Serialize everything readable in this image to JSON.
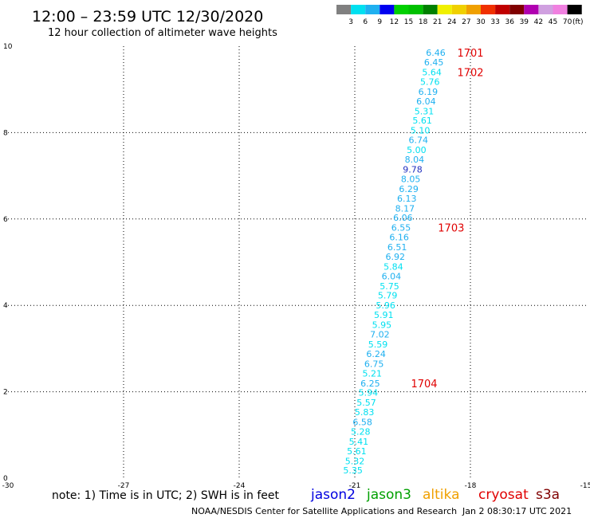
{
  "chart_data": {
    "type": "scatter",
    "title": "12:00 – 23:59 UTC 12/30/2020",
    "subtitle": "12 hour collection of altimeter wave heights",
    "xlim": [
      -30,
      -15
    ],
    "ylim": [
      0,
      10
    ],
    "x_ticks": [
      "-30",
      "-27",
      "-24",
      "-21",
      "-18",
      "-15"
    ],
    "y_ticks": [
      "0",
      "2",
      "4",
      "6",
      "8",
      "10"
    ],
    "grid": "dotted",
    "points": [
      {
        "x": -18.9,
        "y": 9.85,
        "label": "6.46",
        "color": "#1fb0f0"
      },
      {
        "x": -18.95,
        "y": 9.63,
        "label": "6.45",
        "color": "#1fb0f0"
      },
      {
        "x": -19.0,
        "y": 9.4,
        "label": "5.64",
        "color": "#00e0f0"
      },
      {
        "x": -19.05,
        "y": 9.18,
        "label": "5.76",
        "color": "#00e0f0"
      },
      {
        "x": -19.1,
        "y": 8.95,
        "label": "6.19",
        "color": "#1fb0f0"
      },
      {
        "x": -19.15,
        "y": 8.73,
        "label": "6.04",
        "color": "#1fb0f0"
      },
      {
        "x": -19.2,
        "y": 8.5,
        "label": "5.31",
        "color": "#00e0f0"
      },
      {
        "x": -19.25,
        "y": 8.28,
        "label": "5.61",
        "color": "#00e0f0"
      },
      {
        "x": -19.3,
        "y": 8.05,
        "label": "5.10",
        "color": "#00e0f0"
      },
      {
        "x": -19.35,
        "y": 7.83,
        "label": "6.74",
        "color": "#1fb0f0"
      },
      {
        "x": -19.4,
        "y": 7.6,
        "label": "5.00",
        "color": "#00e0f0"
      },
      {
        "x": -19.45,
        "y": 7.38,
        "label": "8.04",
        "color": "#1fb0f0"
      },
      {
        "x": -19.5,
        "y": 7.15,
        "label": "9.78",
        "color": "#2030c0"
      },
      {
        "x": -19.55,
        "y": 6.93,
        "label": "8.05",
        "color": "#1fb0f0"
      },
      {
        "x": -19.6,
        "y": 6.7,
        "label": "6.29",
        "color": "#1fb0f0"
      },
      {
        "x": -19.65,
        "y": 6.48,
        "label": "6.13",
        "color": "#1fb0f0"
      },
      {
        "x": -19.7,
        "y": 6.25,
        "label": "8.17",
        "color": "#1fb0f0"
      },
      {
        "x": -19.75,
        "y": 6.03,
        "label": "6.06",
        "color": "#1fb0f0"
      },
      {
        "x": -19.8,
        "y": 5.8,
        "label": "6.55",
        "color": "#1fb0f0"
      },
      {
        "x": -19.85,
        "y": 5.58,
        "label": "6.16",
        "color": "#1fb0f0"
      },
      {
        "x": -19.9,
        "y": 5.35,
        "label": "6.51",
        "color": "#1fb0f0"
      },
      {
        "x": -19.95,
        "y": 5.13,
        "label": "6.92",
        "color": "#1fb0f0"
      },
      {
        "x": -20.0,
        "y": 4.9,
        "label": "5.84",
        "color": "#00e0f0"
      },
      {
        "x": -20.05,
        "y": 4.68,
        "label": "6.04",
        "color": "#1fb0f0"
      },
      {
        "x": -20.1,
        "y": 4.45,
        "label": "5.75",
        "color": "#00e0f0"
      },
      {
        "x": -20.15,
        "y": 4.23,
        "label": "5.79",
        "color": "#00e0f0"
      },
      {
        "x": -20.2,
        "y": 4.0,
        "label": "5.96",
        "color": "#00e0f0"
      },
      {
        "x": -20.25,
        "y": 3.78,
        "label": "5.91",
        "color": "#00e0f0"
      },
      {
        "x": -20.3,
        "y": 3.55,
        "label": "5.95",
        "color": "#00e0f0"
      },
      {
        "x": -20.35,
        "y": 3.33,
        "label": "7.02",
        "color": "#1fb0f0"
      },
      {
        "x": -20.4,
        "y": 3.1,
        "label": "5.59",
        "color": "#00e0f0"
      },
      {
        "x": -20.45,
        "y": 2.88,
        "label": "6.24",
        "color": "#1fb0f0"
      },
      {
        "x": -20.5,
        "y": 2.65,
        "label": "6.75",
        "color": "#1fb0f0"
      },
      {
        "x": -20.55,
        "y": 2.43,
        "label": "5.21",
        "color": "#00e0f0"
      },
      {
        "x": -20.6,
        "y": 2.2,
        "label": "6.25",
        "color": "#1fb0f0"
      },
      {
        "x": -20.65,
        "y": 1.98,
        "label": "5.94",
        "color": "#00e0f0"
      },
      {
        "x": -20.7,
        "y": 1.75,
        "label": "5.57",
        "color": "#00e0f0"
      },
      {
        "x": -20.75,
        "y": 1.53,
        "label": "5.83",
        "color": "#00e0f0"
      },
      {
        "x": -20.8,
        "y": 1.3,
        "label": "6.58",
        "color": "#1fb0f0"
      },
      {
        "x": -20.85,
        "y": 1.08,
        "label": "5.28",
        "color": "#00e0f0"
      },
      {
        "x": -20.9,
        "y": 0.85,
        "label": "5.41",
        "color": "#00e0f0"
      },
      {
        "x": -20.95,
        "y": 0.63,
        "label": "5.61",
        "color": "#00e0f0"
      },
      {
        "x": -21.0,
        "y": 0.4,
        "label": "5.32",
        "color": "#00e0f0"
      },
      {
        "x": -21.05,
        "y": 0.18,
        "label": "5.35",
        "color": "#00e0f0"
      }
    ],
    "annotations": [
      {
        "x": -18.0,
        "y": 9.85,
        "text": "1701"
      },
      {
        "x": -18.0,
        "y": 9.4,
        "text": "1702"
      },
      {
        "x": -18.5,
        "y": 5.8,
        "text": "1703"
      },
      {
        "x": -19.2,
        "y": 2.2,
        "text": "1704"
      }
    ],
    "legend": {
      "position": "top-right",
      "unit": "(ft)",
      "items": [
        {
          "label": "3",
          "color": "#808080"
        },
        {
          "label": "6",
          "color": "#00e0f0"
        },
        {
          "label": "9",
          "color": "#1fb0f0"
        },
        {
          "label": "12",
          "color": "#0000f0"
        },
        {
          "label": "15",
          "color": "#00d000"
        },
        {
          "label": "18",
          "color": "#00c000"
        },
        {
          "label": "21",
          "color": "#008000"
        },
        {
          "label": "24",
          "color": "#f0f000"
        },
        {
          "label": "27",
          "color": "#f0d000"
        },
        {
          "label": "30",
          "color": "#f0a000"
        },
        {
          "label": "33",
          "color": "#f03000"
        },
        {
          "label": "36",
          "color": "#c00000"
        },
        {
          "label": "39",
          "color": "#800000"
        },
        {
          "label": "42",
          "color": "#b000b0"
        },
        {
          "label": "45",
          "color": "#d0a0e0"
        },
        {
          "label": "70",
          "color": "#f080e0"
        },
        {
          "label": "",
          "color": "#000000"
        }
      ]
    }
  },
  "footer": {
    "note": "note:  1) Time is in UTC;  2) SWH is in feet",
    "satellites": [
      {
        "name": "jason2",
        "color": "#0000e0"
      },
      {
        "name": "jason3",
        "color": "#00a000"
      },
      {
        "name": "altika",
        "color": "#f0a000"
      },
      {
        "name": "cryosat",
        "color": "#e00000"
      },
      {
        "name": "s3a",
        "color": "#800000"
      }
    ],
    "credit": "NOAA/NESDIS Center for Satellite Applications and Research",
    "timestamp": "Jan  2 08:30:17 UTC 2021"
  }
}
